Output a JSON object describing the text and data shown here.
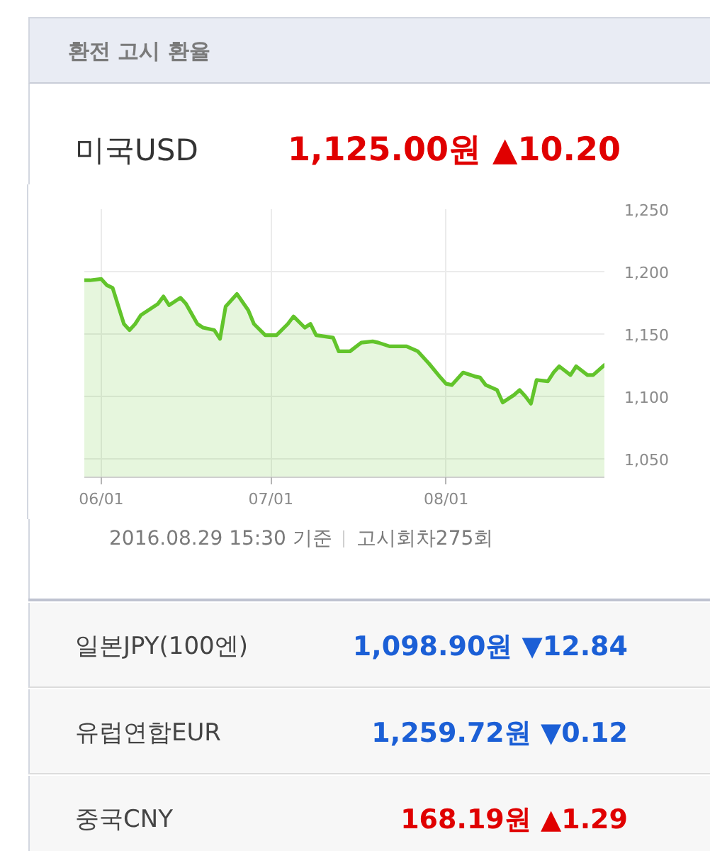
{
  "chart_data": {
    "type": "area",
    "title": "환전 고시 환율",
    "subtitle": "미국USD",
    "annotations": [
      "1,125.00원 ▲10.20",
      "2016.08.29 15:30 기준",
      "고시회차275회",
      "일본JPY(100엔)",
      "1,098.90원 ▼12.84",
      "유럽연합EUR",
      "1,259.72원 ▼0.12",
      "중국CNY",
      "168.19원 ▲1.29"
    ],
    "x": [
      "2016-05-29",
      "2016-05-30",
      "2016-06-01",
      "2016-06-02",
      "2016-06-03",
      "2016-06-05",
      "2016-06-06",
      "2016-06-07",
      "2016-06-08",
      "2016-06-11",
      "2016-06-12",
      "2016-06-13",
      "2016-06-15",
      "2016-06-16",
      "2016-06-18",
      "2016-06-19",
      "2016-06-21",
      "2016-06-22",
      "2016-06-23",
      "2016-06-25",
      "2016-06-27",
      "2016-06-28",
      "2016-06-30",
      "2016-07-02",
      "2016-07-04",
      "2016-07-05",
      "2016-07-07",
      "2016-07-08",
      "2016-07-09",
      "2016-07-12",
      "2016-07-13",
      "2016-07-15",
      "2016-07-17",
      "2016-07-19",
      "2016-07-20",
      "2016-07-22",
      "2016-07-24",
      "2016-07-25",
      "2016-07-27",
      "2016-07-29",
      "2016-07-31",
      "2016-08-01",
      "2016-08-02",
      "2016-08-04",
      "2016-08-06",
      "2016-08-07",
      "2016-08-08",
      "2016-08-10",
      "2016-08-11",
      "2016-08-13",
      "2016-08-14",
      "2016-08-15",
      "2016-08-16",
      "2016-08-17",
      "2016-08-19",
      "2016-08-20",
      "2016-08-21",
      "2016-08-23",
      "2016-08-24",
      "2016-08-26",
      "2016-08-27",
      "2016-08-29"
    ],
    "series": [
      {
        "color": "#62c42b",
        "values": [
          1193,
          1193,
          1194,
          1189,
          1187,
          1158,
          1153,
          1158,
          1165,
          1174,
          1180,
          1173,
          1179,
          1174,
          1158,
          1155,
          1153,
          1146,
          1172,
          1182,
          1169,
          1158,
          1149,
          1149,
          1158,
          1164,
          1155,
          1158,
          1149,
          1147,
          1136,
          1136,
          1143,
          1144,
          1143,
          1140,
          1140,
          1140,
          1136,
          1126,
          1115,
          1110,
          1109,
          1119,
          1116,
          1115,
          1109,
          1105,
          1095,
          1101,
          1105,
          1100,
          1094,
          1113,
          1112,
          1119,
          1124,
          1117,
          1124,
          1117,
          1117,
          1125
        ]
      }
    ],
    "xlim": [
      "2016-05-29",
      "2016-08-29"
    ],
    "xticks": [
      {
        "value": "2016-06-01",
        "label": "06/01"
      },
      {
        "value": "2016-07-01",
        "label": "07/01"
      },
      {
        "value": "2016-08-01",
        "label": "08/01"
      }
    ],
    "ylim": [
      1035,
      1250
    ],
    "yticks": [
      {
        "value": 1050,
        "label": "1,050"
      },
      {
        "value": 1100,
        "label": "1,100"
      },
      {
        "value": 1150,
        "label": "1,150"
      },
      {
        "value": 1200,
        "label": "1,200"
      },
      {
        "value": 1250,
        "label": "1,250"
      }
    ],
    "grid": true,
    "line_style": "solid"
  }
}
